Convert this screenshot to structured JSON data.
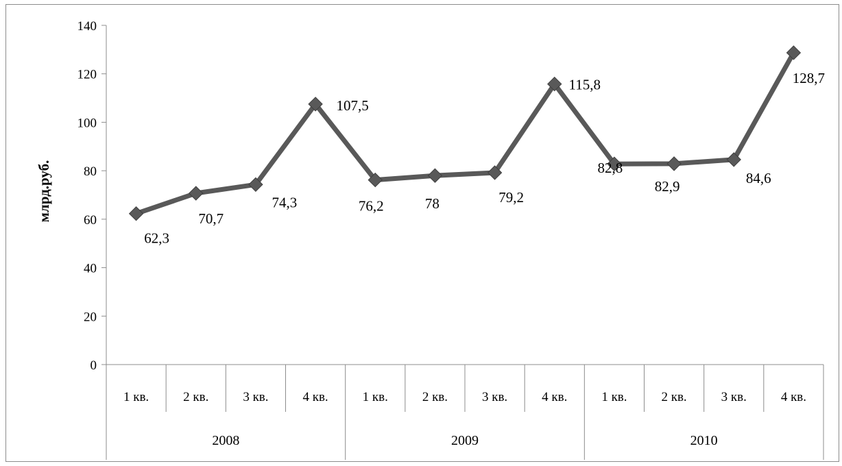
{
  "chart_data": {
    "type": "line",
    "ylabel": "млрд.руб.",
    "ylim": [
      0,
      140
    ],
    "yticks": [
      0,
      20,
      40,
      60,
      80,
      100,
      120,
      140
    ],
    "grid": false,
    "categories": [
      "1 кв.",
      "2 кв.",
      "3 кв.",
      "4 кв.",
      "1 кв.",
      "2 кв.",
      "3 кв.",
      "4 кв.",
      "1 кв.",
      "2 кв.",
      "3 кв.",
      "4 кв."
    ],
    "groups": [
      {
        "label": "2008",
        "span": 4
      },
      {
        "label": "2009",
        "span": 4
      },
      {
        "label": "2010",
        "span": 4
      }
    ],
    "series": [
      {
        "values": [
          62.3,
          70.7,
          74.3,
          107.5,
          76.2,
          78,
          79.2,
          115.8,
          82.8,
          82.9,
          84.6,
          128.7
        ],
        "value_labels": [
          "62,3",
          "70,7",
          "74,3",
          "107,5",
          "76,2",
          "78",
          "79,2",
          "115,8",
          "82,8",
          "82,9",
          "84,6",
          "128,7"
        ],
        "color": "#595959",
        "marker": "diamond"
      }
    ]
  }
}
